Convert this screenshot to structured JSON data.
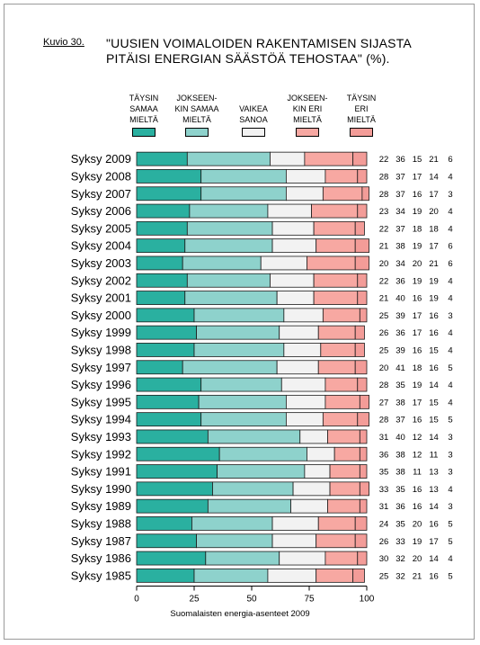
{
  "figure_label": "Kuvio 30.",
  "title_line1": "\"UUSIEN VOIMALOIDEN RAKENTAMISEN SIJASTA",
  "title_line2": "PITÄISI ENERGIAN SÄÄSTÖÄ TEHOSTAA\" (%).",
  "source": "Suomalaisten energia-asenteet 2009",
  "colors": [
    "#2ab0a0",
    "#8ed2cc",
    "#f2f2f2",
    "#f7a8a2",
    "#f39c98"
  ],
  "legend": [
    {
      "lines": [
        "TÄYSIN",
        "SAMAA",
        "MIELTÄ"
      ]
    },
    {
      "lines": [
        "JOKSEEN-",
        "KIN SAMAA",
        "MIELTÄ"
      ]
    },
    {
      "lines": [
        "VAIKEA",
        "SANOA"
      ]
    },
    {
      "lines": [
        "JOKSEEN-",
        "KIN ERI",
        "MIELTÄ"
      ]
    },
    {
      "lines": [
        "TÄYSIN",
        "ERI",
        "MIELTÄ"
      ]
    }
  ],
  "chart_data": {
    "type": "bar",
    "orientation": "horizontal",
    "stacked": true,
    "categories": [
      "Syksy 2009",
      "Syksy 2008",
      "Syksy 2007",
      "Syksy 2006",
      "Syksy 2005",
      "Syksy 2004",
      "Syksy 2003",
      "Syksy 2002",
      "Syksy 2001",
      "Syksy 2000",
      "Syksy 1999",
      "Syksy 1998",
      "Syksy 1997",
      "Syksy 1996",
      "Syksy 1995",
      "Syksy 1994",
      "Syksy 1993",
      "Syksy 1992",
      "Syksy 1991",
      "Syksy 1990",
      "Syksy 1989",
      "Syksy 1988",
      "Syksy 1987",
      "Syksy 1986",
      "Syksy 1985"
    ],
    "series": [
      {
        "name": "TÄYSIN SAMAA MIELTÄ",
        "values": [
          22,
          28,
          28,
          23,
          22,
          21,
          20,
          22,
          21,
          25,
          26,
          25,
          20,
          28,
          27,
          28,
          31,
          36,
          35,
          33,
          31,
          24,
          26,
          30,
          25
        ]
      },
      {
        "name": "JOKSEENKIN SAMAA MIELTÄ",
        "values": [
          36,
          37,
          37,
          34,
          37,
          38,
          34,
          36,
          40,
          39,
          36,
          39,
          41,
          35,
          38,
          37,
          40,
          38,
          38,
          35,
          36,
          35,
          33,
          32,
          32
        ]
      },
      {
        "name": "VAIKEA SANOA",
        "values": [
          15,
          17,
          16,
          19,
          18,
          19,
          20,
          19,
          16,
          17,
          17,
          16,
          18,
          19,
          17,
          16,
          12,
          12,
          11,
          16,
          16,
          20,
          19,
          20,
          21
        ]
      },
      {
        "name": "JOKSEENKIN ERI MIELTÄ",
        "values": [
          21,
          14,
          17,
          20,
          18,
          17,
          21,
          19,
          19,
          16,
          16,
          15,
          16,
          14,
          15,
          15,
          14,
          11,
          13,
          13,
          14,
          16,
          17,
          14,
          16
        ]
      },
      {
        "name": "TÄYSIN ERI MIELTÄ",
        "values": [
          6,
          4,
          3,
          4,
          4,
          6,
          6,
          4,
          4,
          3,
          4,
          4,
          5,
          4,
          4,
          5,
          3,
          3,
          3,
          4,
          3,
          5,
          5,
          4,
          5
        ]
      }
    ],
    "xlim": [
      0,
      100
    ],
    "xticks": [
      "0",
      "25",
      "50",
      "75",
      "100"
    ]
  }
}
